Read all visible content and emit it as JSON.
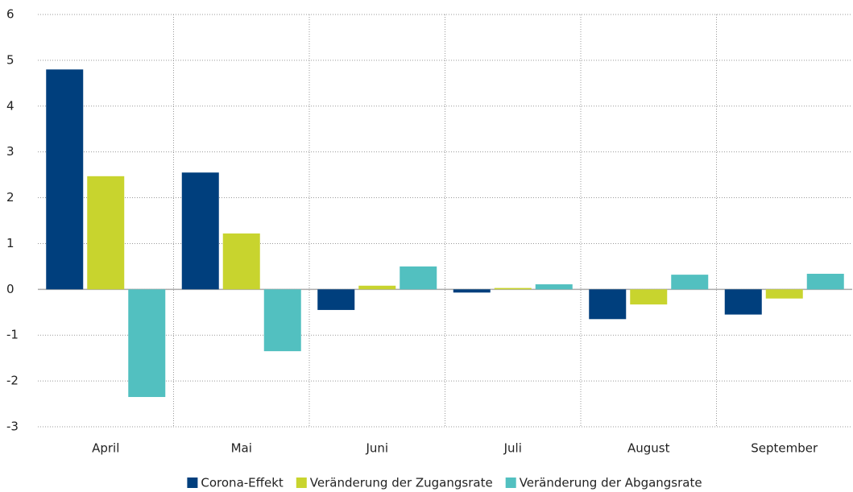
{
  "chart_data": {
    "type": "bar",
    "categories": [
      "April",
      "Mai",
      "Juni",
      "Juli",
      "August",
      "September"
    ],
    "series": [
      {
        "name": "Corona-Effekt",
        "color": "#003f7d",
        "values": [
          4.8,
          2.55,
          -0.45,
          -0.07,
          -0.65,
          -0.55
        ]
      },
      {
        "name": "Veränderung der Zugangsrate",
        "color": "#c8d42e",
        "values": [
          2.47,
          1.22,
          0.08,
          0.03,
          -0.33,
          -0.2
        ]
      },
      {
        "name": "Veränderung der Abgangsrate",
        "color": "#52c0c0",
        "values": [
          -2.35,
          -1.35,
          0.5,
          0.11,
          0.32,
          0.34
        ]
      }
    ],
    "ylim": [
      -3,
      6
    ],
    "yticks": [
      -3,
      -2,
      -1,
      0,
      1,
      2,
      3,
      4,
      5,
      6
    ],
    "grid": true,
    "legend": "bottom"
  }
}
